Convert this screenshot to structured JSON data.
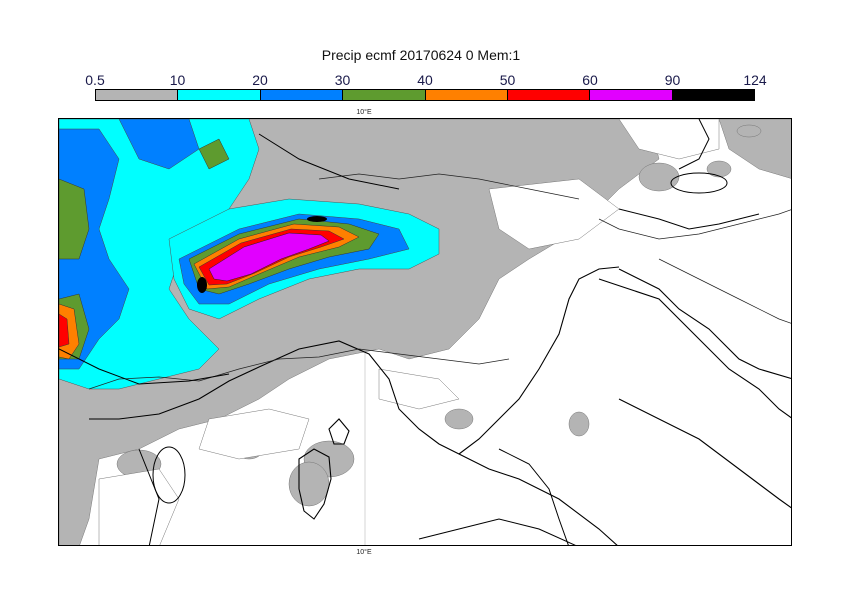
{
  "title": "Precip ecmf 20170624 0 Mem:1",
  "legend": {
    "levels": [
      "0.5",
      "10",
      "20",
      "30",
      "40",
      "50",
      "60",
      "90",
      "124"
    ],
    "colors": [
      "#b4b4b4",
      "#00ffff",
      "#0080ff",
      "#5e9b2f",
      "#ff8000",
      "#ff0000",
      "#e100ff",
      "#000000"
    ]
  },
  "map": {
    "meridian_label_top": "10°E",
    "meridian_label_bottom": "10°E"
  }
}
